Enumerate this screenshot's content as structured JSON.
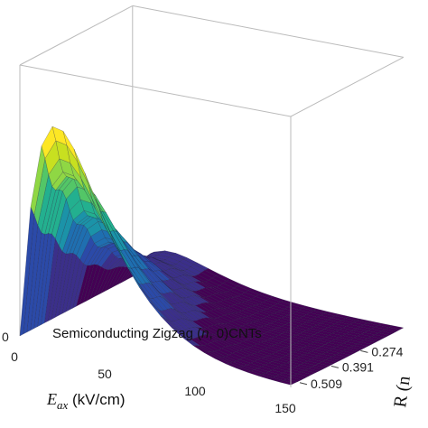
{
  "chart_data": {
    "type": "surface",
    "annotation_parts": [
      "Semiconducting Zigzag (",
      "n",
      ", 0)CNTs"
    ],
    "xlabel": {
      "base": "E",
      "sub": "ax",
      "unit": " (kV/cm)"
    },
    "ylabel": "R (n",
    "x_ticks": [
      "0",
      "50",
      "100",
      "150"
    ],
    "y_ticks": [
      "0.274",
      "0.391",
      "0.509"
    ],
    "z_ticks": [
      "0"
    ],
    "xlim": [
      0,
      150
    ],
    "y_values": [
      0.039,
      0.157,
      0.274,
      0.391,
      0.509
    ],
    "colormap": [
      "#440154",
      "#3b2f8a",
      "#2b4aa8",
      "#1f6fb0",
      "#1b93a8",
      "#23b08f",
      "#53c667",
      "#8fd744",
      "#c8e020",
      "#fde725"
    ],
    "surface_peak_at_x": 20,
    "grid": true
  }
}
